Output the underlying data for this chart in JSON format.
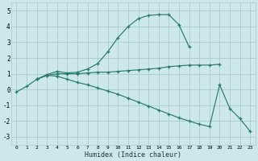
{
  "xlabel": "Humidex (Indice chaleur)",
  "background_color": "#cce8e8",
  "grid_color": "#aacccc",
  "line_color": "#2a7a6a",
  "x_values": [
    0,
    1,
    2,
    3,
    4,
    5,
    6,
    7,
    8,
    9,
    10,
    11,
    12,
    13,
    14,
    15,
    16,
    17,
    18,
    19,
    20,
    21,
    22,
    23
  ],
  "series1": [
    -0.15,
    0.2,
    0.65,
    0.95,
    1.15,
    1.05,
    1.1,
    1.3,
    1.65,
    2.4,
    3.3,
    4.0,
    4.5,
    4.7,
    4.75,
    4.75,
    4.1,
    2.7,
    null,
    null,
    null,
    null,
    null,
    null
  ],
  "series2": [
    null,
    null,
    0.65,
    0.9,
    1.0,
    1.0,
    1.0,
    1.05,
    1.1,
    1.1,
    1.15,
    1.2,
    1.25,
    1.3,
    1.35,
    1.45,
    1.5,
    1.55,
    1.55,
    1.55,
    1.6,
    null,
    null,
    null
  ],
  "series3": [
    null,
    null,
    0.65,
    0.9,
    0.85,
    0.65,
    0.45,
    0.3,
    0.1,
    -0.1,
    -0.3,
    -0.55,
    -0.8,
    -1.05,
    -1.3,
    -1.55,
    -1.8,
    -2.0,
    -2.2,
    -2.35,
    0.3,
    -1.2,
    -1.85,
    -2.65
  ],
  "ylim": [
    -3.5,
    5.5
  ],
  "yticks": [
    -3,
    -2,
    -1,
    0,
    1,
    2,
    3,
    4,
    5
  ],
  "xlim": [
    -0.5,
    23.5
  ],
  "xtick_labels": [
    "0",
    "1",
    "2",
    "3",
    "4",
    "5",
    "6",
    "7",
    "8",
    "9",
    "10",
    "11",
    "12",
    "13",
    "14",
    "15",
    "16",
    "17",
    "18",
    "19",
    "20",
    "21",
    "22",
    "23"
  ]
}
